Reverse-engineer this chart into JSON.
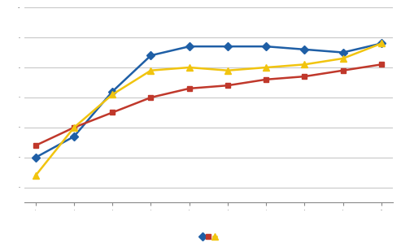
{
  "x": [
    1,
    2,
    3,
    4,
    5,
    6,
    7,
    8,
    9,
    10
  ],
  "blue": [
    50,
    57,
    72,
    84,
    87,
    87,
    87,
    86,
    85,
    88
  ],
  "red": [
    54,
    60,
    65,
    70,
    73,
    74,
    76,
    77,
    79,
    81
  ],
  "yellow": [
    44,
    60,
    71,
    79,
    80,
    79,
    80,
    81,
    83,
    88
  ],
  "blue_color": "#1f5fa6",
  "red_color": "#c0382b",
  "yellow_color": "#f1c40f",
  "background_color": "#ffffff",
  "plot_bg_color": "#ffffff",
  "grid_color": "#c8c8c8",
  "border_color": "#000000",
  "ylim": [
    35,
    100
  ],
  "xlim": [
    0.7,
    10.3
  ],
  "figsize": [
    4.93,
    3.04
  ],
  "dpi": 100
}
